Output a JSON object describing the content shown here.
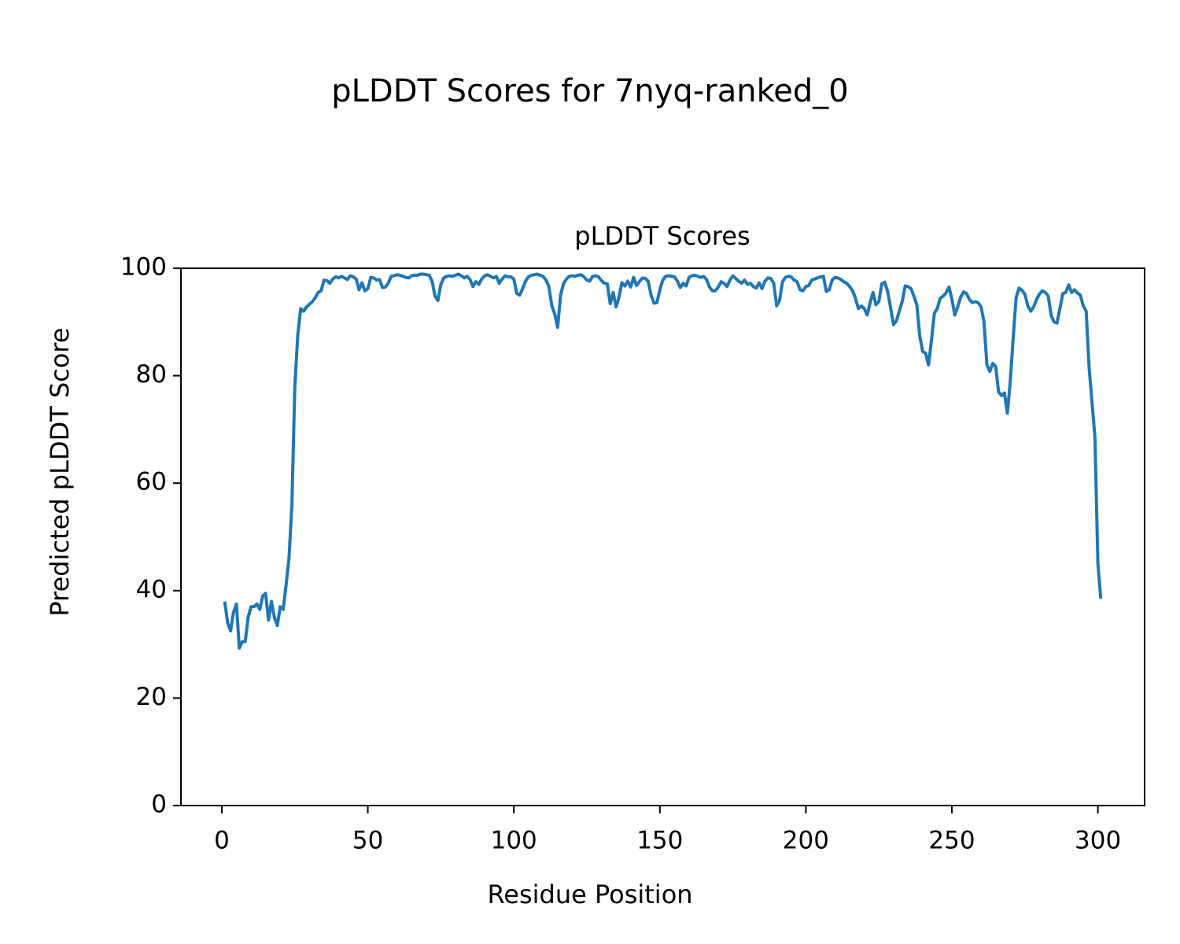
{
  "chart_data": {
    "type": "line",
    "title": "pLDDT Scores for 7nyq-ranked_0",
    "subtitle": "pLDDT Scores",
    "xlabel": "Residue Position",
    "ylabel": "Predicted pLDDT Score",
    "color": "#1f77b4",
    "xlim": [
      -14,
      316
    ],
    "xticks": [
      0,
      50,
      100,
      150,
      200,
      250,
      300
    ],
    "ylim": [
      0,
      100
    ],
    "yticks": [
      0,
      20,
      40,
      60,
      80,
      100
    ],
    "x": [
      1,
      2,
      3,
      4,
      5,
      6,
      7,
      8,
      9,
      10,
      11,
      12,
      13,
      14,
      15,
      16,
      17,
      18,
      19,
      20,
      21,
      22,
      23,
      24,
      25,
      26,
      27,
      28,
      29,
      30,
      31,
      32,
      33,
      34,
      35,
      36,
      37,
      38,
      39,
      40,
      41,
      42,
      43,
      44,
      45,
      46,
      47,
      48,
      49,
      50,
      51,
      52,
      53,
      54,
      55,
      56,
      57,
      58,
      59,
      60,
      61,
      62,
      63,
      64,
      65,
      66,
      67,
      68,
      69,
      70,
      71,
      72,
      73,
      74,
      75,
      76,
      77,
      78,
      79,
      80,
      81,
      82,
      83,
      84,
      85,
      86,
      87,
      88,
      89,
      90,
      91,
      92,
      93,
      94,
      95,
      96,
      97,
      98,
      99,
      100,
      101,
      102,
      103,
      104,
      105,
      106,
      107,
      108,
      109,
      110,
      111,
      112,
      113,
      114,
      115,
      116,
      117,
      118,
      119,
      120,
      121,
      122,
      123,
      124,
      125,
      126,
      127,
      128,
      129,
      130,
      131,
      132,
      133,
      134,
      135,
      136,
      137,
      138,
      139,
      140,
      141,
      142,
      143,
      144,
      145,
      146,
      147,
      148,
      149,
      150,
      151,
      152,
      153,
      154,
      155,
      156,
      157,
      158,
      159,
      160,
      161,
      162,
      163,
      164,
      165,
      166,
      167,
      168,
      169,
      170,
      171,
      172,
      173,
      174,
      175,
      176,
      177,
      178,
      179,
      180,
      181,
      182,
      183,
      184,
      185,
      186,
      187,
      188,
      189,
      190,
      191,
      192,
      193,
      194,
      195,
      196,
      197,
      198,
      199,
      200,
      201,
      202,
      203,
      204,
      205,
      206,
      207,
      208,
      209,
      210,
      211,
      212,
      213,
      214,
      215,
      216,
      217,
      218,
      219,
      220,
      221,
      222,
      223,
      224,
      225,
      226,
      227,
      228,
      229,
      230,
      231,
      232,
      233,
      234,
      235,
      236,
      237,
      238,
      239,
      240,
      241,
      242,
      243,
      244,
      245,
      246,
      247,
      248,
      249,
      250,
      251,
      252,
      253,
      254,
      255,
      256,
      257,
      258,
      259,
      260,
      261,
      262,
      263,
      264,
      265,
      266,
      267,
      268,
      269,
      270,
      271,
      272,
      273,
      274,
      275,
      276,
      277,
      278,
      279,
      280,
      281,
      282,
      283,
      284,
      285,
      286,
      287,
      288,
      289,
      290,
      291,
      292,
      293,
      294,
      295,
      296,
      297,
      298,
      299,
      300,
      301
    ],
    "values": [
      38,
      34,
      32.5,
      36,
      37.5,
      29.3,
      30.5,
      30.5,
      35,
      37,
      37,
      37.5,
      36.5,
      39,
      39.5,
      34.5,
      38,
      35,
      33.5,
      37,
      36.5,
      41,
      46,
      56,
      78,
      87.5,
      92.5,
      92,
      92.8,
      93.3,
      93.8,
      94.5,
      95.5,
      95.8,
      97.8,
      97.7,
      97.2,
      98,
      98.4,
      98.2,
      98.5,
      98.2,
      97.9,
      98.6,
      98.4,
      98,
      96,
      97.3,
      95.8,
      96.2,
      98.3,
      98.2,
      97.8,
      97.9,
      96.4,
      96.5,
      97.2,
      98.5,
      98.6,
      98.8,
      98.7,
      98.5,
      98.3,
      98.2,
      98.6,
      98.7,
      98.7,
      98.9,
      98.9,
      98.8,
      98.7,
      97.6,
      94.8,
      94,
      97,
      98.2,
      98.5,
      98.6,
      98.5,
      98.7,
      98.9,
      98.6,
      98.2,
      98.5,
      97.9,
      96.6,
      97.5,
      97,
      98,
      98.6,
      98.8,
      98.5,
      98.2,
      98.5,
      97.2,
      98,
      98.6,
      98.4,
      98.4,
      98,
      95.3,
      95,
      96.2,
      97.6,
      98.4,
      98.7,
      98.8,
      98.9,
      98.7,
      98.5,
      97.8,
      96.6,
      93,
      91.5,
      89,
      95,
      97.1,
      98,
      98.5,
      98.6,
      98.5,
      98.7,
      98.8,
      98.4,
      97.8,
      97.6,
      98.5,
      98.6,
      98.4,
      97.7,
      97.2,
      97.1,
      93.4,
      95.5,
      92.8,
      94.6,
      97.3,
      96.7,
      97.6,
      96.5,
      98.3,
      96.8,
      97.5,
      98.2,
      98.1,
      97.6,
      95,
      93.5,
      93.6,
      96,
      97.8,
      98.5,
      98.6,
      98.5,
      98.4,
      97.6,
      96.4,
      97.2,
      96.7,
      98.3,
      98.6,
      98.7,
      98.5,
      98.3,
      98.5,
      97.9,
      96.5,
      95.8,
      95.8,
      96.5,
      97.5,
      97.2,
      96.6,
      97.8,
      98.6,
      98.1,
      97.6,
      97.2,
      97.8,
      97,
      97.2,
      96.6,
      96.3,
      97.3,
      96.2,
      97.6,
      98.2,
      98.1,
      97.2,
      93,
      94,
      97.5,
      98.3,
      98.5,
      98.4,
      97.8,
      97.5,
      96,
      95.8,
      96.6,
      96.8,
      97.8,
      98,
      98.2,
      98.4,
      98.5,
      95.7,
      96,
      97.8,
      98.3,
      98.2,
      97.9,
      97.5,
      97.2,
      96.6,
      95.8,
      94.4,
      92.5,
      93,
      92.5,
      91.3,
      93.6,
      95.5,
      93.2,
      93.8,
      97.1,
      97.4,
      95.7,
      92.7,
      89.5,
      90.2,
      92,
      93.8,
      96.7,
      96.6,
      96.2,
      94.8,
      93.2,
      87.4,
      84.5,
      84.2,
      82,
      86.5,
      91.6,
      92.5,
      94.4,
      94.8,
      95.4,
      96.5,
      94.3,
      91.3,
      92.8,
      94.6,
      95.6,
      95.3,
      94.2,
      93.6,
      93.8,
      93.6,
      92.8,
      90,
      82,
      80.8,
      82.3,
      81.7,
      77,
      76.3,
      76.8,
      73,
      79,
      87,
      94.5,
      96.3,
      95.9,
      95.2,
      93,
      92,
      92.8,
      94.2,
      95.2,
      95.8,
      95.5,
      94.8,
      91.2,
      90,
      89.8,
      92.5,
      95.3,
      95.5,
      96.9,
      95.5,
      96,
      95.4,
      95,
      93,
      92,
      81.5,
      75,
      68.5,
      45,
      38.5
    ]
  }
}
